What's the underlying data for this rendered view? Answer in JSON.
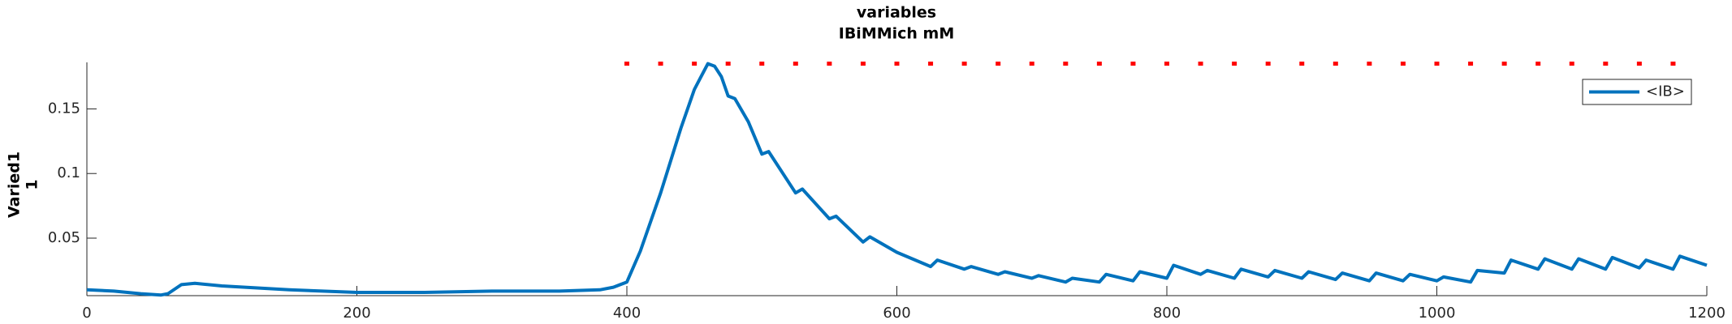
{
  "chart_data": {
    "type": "line",
    "title": "variables",
    "subtitle": "IBiMMich mM",
    "ylabel": [
      "Varied1",
      "1"
    ],
    "xlim": [
      0,
      1200
    ],
    "xticks": [
      0,
      200,
      400,
      600,
      800,
      1000,
      1200
    ],
    "ylim": [
      0.0055,
      0.186
    ],
    "yticks": [
      0.05,
      0.1,
      0.15
    ],
    "legend": "upper right",
    "series": [
      {
        "name": "<IB>",
        "color": "#0072bd",
        "style": "line",
        "x": [
          0,
          20,
          40,
          55,
          60,
          70,
          80,
          100,
          150,
          200,
          250,
          300,
          350,
          380,
          390,
          400,
          410,
          425,
          440,
          450,
          455,
          460,
          465,
          470,
          475,
          480,
          490,
          500,
          505,
          525,
          530,
          550,
          555,
          575,
          580,
          600,
          625,
          630,
          650,
          655,
          675,
          680,
          700,
          705,
          725,
          730,
          750,
          755,
          775,
          780,
          800,
          805,
          825,
          830,
          850,
          855,
          875,
          880,
          900,
          905,
          925,
          930,
          950,
          955,
          975,
          980,
          1000,
          1005,
          1025,
          1030,
          1050,
          1055,
          1075,
          1080,
          1100,
          1105,
          1125,
          1130,
          1150,
          1155,
          1175,
          1180,
          1200
        ],
        "values": [
          0.01,
          0.009,
          0.007,
          0.006,
          0.007,
          0.014,
          0.015,
          0.013,
          0.01,
          0.008,
          0.008,
          0.009,
          0.009,
          0.01,
          0.012,
          0.016,
          0.04,
          0.085,
          0.135,
          0.165,
          0.175,
          0.185,
          0.183,
          0.175,
          0.16,
          0.158,
          0.14,
          0.115,
          0.117,
          0.085,
          0.088,
          0.065,
          0.067,
          0.047,
          0.051,
          0.039,
          0.028,
          0.033,
          0.026,
          0.028,
          0.022,
          0.024,
          0.019,
          0.021,
          0.016,
          0.019,
          0.016,
          0.022,
          0.017,
          0.024,
          0.019,
          0.029,
          0.022,
          0.025,
          0.019,
          0.026,
          0.02,
          0.025,
          0.019,
          0.024,
          0.018,
          0.023,
          0.017,
          0.023,
          0.017,
          0.022,
          0.017,
          0.02,
          0.016,
          0.025,
          0.023,
          0.033,
          0.026,
          0.034,
          0.026,
          0.034,
          0.026,
          0.035,
          0.027,
          0.033,
          0.026,
          0.036,
          0.029
        ]
      },
      {
        "color": "#ff0000",
        "style": "dots",
        "x": [
          400,
          425,
          450,
          475,
          500,
          525,
          550,
          575,
          600,
          625,
          650,
          675,
          700,
          725,
          750,
          775,
          800,
          825,
          850,
          875,
          900,
          925,
          950,
          975,
          1000,
          1025,
          1050,
          1075,
          1100,
          1125,
          1150,
          1175
        ],
        "values": [
          0.185,
          0.185,
          0.185,
          0.185,
          0.185,
          0.185,
          0.185,
          0.185,
          0.185,
          0.185,
          0.185,
          0.185,
          0.185,
          0.185,
          0.185,
          0.185,
          0.185,
          0.185,
          0.185,
          0.185,
          0.185,
          0.185,
          0.185,
          0.185,
          0.185,
          0.185,
          0.185,
          0.185,
          0.185,
          0.185,
          0.185,
          0.185
        ]
      }
    ]
  }
}
